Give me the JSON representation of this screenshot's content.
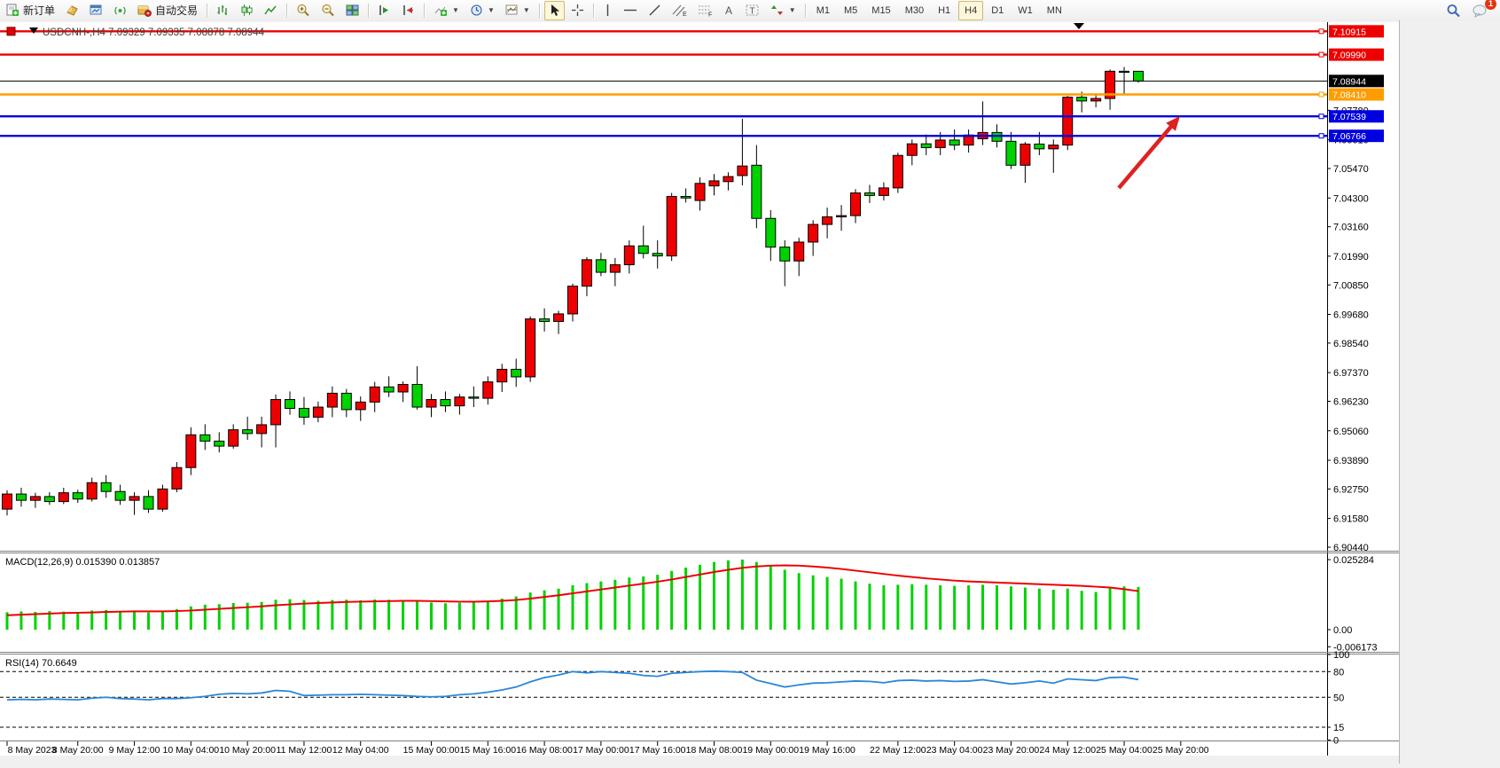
{
  "toolbar": {
    "new_order": "新订单",
    "autotrade": "自动交易",
    "tooltips": {
      "bar_chart": "bar-chart",
      "candle_chart": "candlestick-chart",
      "line_chart": "line-chart",
      "zoom_in": "zoom-in",
      "zoom_out": "zoom-out",
      "tile_windows": "tile-windows",
      "auto_scroll": "auto-scroll",
      "chart_shift": "chart-shift",
      "indicators": "indicators",
      "periods": "periods",
      "templates": "templates",
      "cursor": "cursor",
      "crosshair": "crosshair",
      "vline": "vertical-line",
      "hline": "horizontal-line",
      "trendline": "trendline",
      "channel": "equidistant-channel",
      "fibo": "fibonacci",
      "text": "text",
      "label": "text-label",
      "arrows": "arrows"
    },
    "chat_badge": "1"
  },
  "timeframes": {
    "items": [
      "M1",
      "M5",
      "M15",
      "M30",
      "H1",
      "H4",
      "D1",
      "W1",
      "MN"
    ],
    "active": "H4"
  },
  "chart": {
    "title": "USDCNH-,H4  7.09329 7.09335 7.08878 7.08944",
    "symbol": "USDCNH-",
    "period": "H4",
    "open": "7.09329",
    "high": "7.09335",
    "low": "7.08878",
    "close": "7.08944",
    "current_price": "7.08944",
    "hlines": [
      {
        "price": 7.10915,
        "label": "7.10915",
        "color": "#ee0000"
      },
      {
        "price": 7.0999,
        "label": "7.09990",
        "color": "#ee0000"
      },
      {
        "price": 7.0841,
        "label": "7.08410",
        "color": "#ff9c00"
      },
      {
        "price": 7.07539,
        "label": "7.07539",
        "color": "#0000e0"
      },
      {
        "price": 7.06766,
        "label": "7.06766",
        "color": "#0000e0"
      }
    ],
    "price_ticks": [
      "7.07780",
      "7.06610",
      "7.05470",
      "7.04300",
      "7.03160",
      "7.01990",
      "7.00850",
      "6.99680",
      "6.98540",
      "6.97370",
      "6.96230",
      "6.95060",
      "6.93890",
      "6.92750",
      "6.91580",
      "6.90440"
    ]
  },
  "chart_data": {
    "type": "candlestick",
    "symbol": "USDCNH-",
    "timeframe": "H4",
    "ylim": [
      6.9044,
      7.1128
    ],
    "colors": {
      "bull": "#ee0000",
      "bear": "#00d200",
      "wick": "#000000",
      "macd_hist": "#00d200",
      "macd_signal": "#ee0000",
      "rsi_line": "#2a86d8",
      "hline_red": "#ee0000",
      "hline_orange": "#ff9c00",
      "hline_blue": "#0000e0",
      "arrow": "#dd2222"
    },
    "date_labels": [
      {
        "label": "8 May 2023",
        "i": 0
      },
      {
        "label": "8 May 20:00",
        "i": 5
      },
      {
        "label": "9 May 12:00",
        "i": 9
      },
      {
        "label": "10 May 04:00",
        "i": 13
      },
      {
        "label": "10 May 20:00",
        "i": 17
      },
      {
        "label": "11 May 12:00",
        "i": 21
      },
      {
        "label": "12 May 04:00",
        "i": 25
      },
      {
        "label": "15 May 00:00",
        "i": 30
      },
      {
        "label": "15 May 16:00",
        "i": 34
      },
      {
        "label": "16 May 08:00",
        "i": 38
      },
      {
        "label": "17 May 00:00",
        "i": 42
      },
      {
        "label": "17 May 16:00",
        "i": 46
      },
      {
        "label": "18 May 08:00",
        "i": 50
      },
      {
        "label": "19 May 00:00",
        "i": 54
      },
      {
        "label": "19 May 16:00",
        "i": 58
      },
      {
        "label": "22 May 12:00",
        "i": 63
      },
      {
        "label": "23 May 04:00",
        "i": 67
      },
      {
        "label": "23 May 20:00",
        "i": 71
      },
      {
        "label": "24 May 12:00",
        "i": 75
      },
      {
        "label": "25 May 04:00",
        "i": 79
      },
      {
        "label": "25 May 20:00",
        "i": 83
      }
    ],
    "ohlc": [
      [
        6.9195,
        6.927,
        6.917,
        6.9255
      ],
      [
        6.9255,
        6.928,
        6.9205,
        6.923
      ],
      [
        6.923,
        6.926,
        6.92,
        6.9245
      ],
      [
        6.9245,
        6.9262,
        6.9212,
        6.9225
      ],
      [
        6.9225,
        6.928,
        6.9215,
        6.926
      ],
      [
        6.926,
        6.9272,
        6.922,
        6.9235
      ],
      [
        6.9235,
        6.932,
        6.9225,
        6.93
      ],
      [
        6.93,
        6.933,
        6.924,
        6.9265
      ],
      [
        6.9265,
        6.9292,
        6.9212,
        6.923
      ],
      [
        6.923,
        6.9262,
        6.9172,
        6.9245
      ],
      [
        6.9245,
        6.927,
        6.918,
        6.9195
      ],
      [
        6.9195,
        6.9292,
        6.9185,
        6.9275
      ],
      [
        6.9275,
        6.9382,
        6.9262,
        6.936
      ],
      [
        6.936,
        6.952,
        6.933,
        6.949
      ],
      [
        6.949,
        6.9532,
        6.943,
        6.9465
      ],
      [
        6.9465,
        6.95,
        6.942,
        6.9445
      ],
      [
        6.9445,
        6.9532,
        6.9435,
        6.951
      ],
      [
        6.951,
        6.9562,
        6.947,
        6.9495
      ],
      [
        6.9495,
        6.9562,
        6.944,
        6.953
      ],
      [
        6.953,
        6.965,
        6.944,
        6.963
      ],
      [
        6.963,
        6.9662,
        6.957,
        6.9595
      ],
      [
        6.9595,
        6.964,
        6.953,
        6.956
      ],
      [
        6.956,
        6.9622,
        6.954,
        6.96
      ],
      [
        6.96,
        6.9682,
        6.956,
        6.9655
      ],
      [
        6.9655,
        6.9672,
        6.956,
        6.959
      ],
      [
        6.959,
        6.9642,
        6.9545,
        6.962
      ],
      [
        6.962,
        6.97,
        6.958,
        6.968
      ],
      [
        6.968,
        6.9722,
        6.964,
        6.966
      ],
      [
        6.966,
        6.9702,
        6.962,
        6.969
      ],
      [
        6.969,
        6.9762,
        6.959,
        6.96
      ],
      [
        6.96,
        6.9652,
        6.956,
        6.963
      ],
      [
        6.963,
        6.9662,
        6.958,
        6.9605
      ],
      [
        6.9605,
        6.9652,
        6.957,
        6.964
      ],
      [
        6.964,
        6.9682,
        6.96,
        6.9635
      ],
      [
        6.9635,
        6.9722,
        6.961,
        6.97
      ],
      [
        6.97,
        6.9772,
        6.966,
        6.975
      ],
      [
        6.975,
        6.9792,
        6.968,
        6.972
      ],
      [
        6.972,
        6.996,
        6.97,
        6.995
      ],
      [
        6.995,
        6.9992,
        6.99,
        6.994
      ],
      [
        6.994,
        6.9982,
        6.989,
        6.997
      ],
      [
        6.997,
        7.009,
        6.994,
        7.008
      ],
      [
        7.008,
        7.0195,
        7.004,
        7.0185
      ],
      [
        7.0185,
        7.0212,
        7.012,
        7.0135
      ],
      [
        7.0135,
        7.0192,
        7.008,
        7.0165
      ],
      [
        7.0165,
        7.0262,
        7.013,
        7.024
      ],
      [
        7.024,
        7.032,
        7.019,
        7.021
      ],
      [
        7.021,
        7.0262,
        7.015,
        7.02
      ],
      [
        7.02,
        7.045,
        7.018,
        7.0436
      ],
      [
        7.0436,
        7.0468,
        7.0412,
        7.043
      ],
      [
        7.042,
        7.0512,
        7.038,
        7.0488
      ],
      [
        7.0478,
        7.0525,
        7.044,
        7.0498
      ],
      [
        7.0495,
        7.0532,
        7.046,
        7.0515
      ],
      [
        7.0519,
        7.0744,
        7.048,
        7.0557
      ],
      [
        7.056,
        7.064,
        7.031,
        7.0349
      ],
      [
        7.0349,
        7.0382,
        7.018,
        7.0235
      ],
      [
        7.0235,
        7.0262,
        7.008,
        7.018
      ],
      [
        7.018,
        7.0272,
        7.012,
        7.0255
      ],
      [
        7.0255,
        7.0342,
        7.02,
        7.0325
      ],
      [
        7.0325,
        7.0392,
        7.027,
        7.0355
      ],
      [
        7.0355,
        7.0402,
        7.03,
        7.036
      ],
      [
        7.036,
        7.0465,
        7.033,
        7.045
      ],
      [
        7.045,
        7.0482,
        7.041,
        7.044
      ],
      [
        7.044,
        7.0492,
        7.042,
        7.047
      ],
      [
        7.047,
        7.061,
        7.045,
        7.0599
      ],
      [
        7.0599,
        7.0662,
        7.056,
        7.0645
      ],
      [
        7.0645,
        7.0682,
        7.06,
        7.063
      ],
      [
        7.063,
        7.0692,
        7.06,
        7.066
      ],
      [
        7.066,
        7.0702,
        7.062,
        7.064
      ],
      [
        7.064,
        7.0702,
        7.061,
        7.068
      ],
      [
        7.0665,
        7.0813,
        7.064,
        7.069
      ],
      [
        7.069,
        7.0722,
        7.063,
        7.0655
      ],
      [
        7.0655,
        7.0692,
        7.0545,
        7.056
      ],
      [
        7.056,
        7.0652,
        7.049,
        7.0644
      ],
      [
        7.0644,
        7.0692,
        7.06,
        7.0625
      ],
      [
        7.0625,
        7.0662,
        7.053,
        7.064
      ],
      [
        7.064,
        7.0835,
        7.062,
        7.083
      ],
      [
        7.083,
        7.0852,
        7.077,
        7.0815
      ],
      [
        7.0815,
        7.0845,
        7.079,
        7.0825
      ],
      [
        7.0825,
        7.094,
        7.078,
        7.0933
      ],
      [
        7.0933,
        7.095,
        7.084,
        7.093
      ],
      [
        7.09329,
        7.09335,
        7.08878,
        7.08944
      ]
    ],
    "macd": {
      "label": "MACD(12,26,9)",
      "value_main": "0.015390",
      "value_signal": "0.013857",
      "axis_labels": [
        "0.025284",
        "0.00",
        "-0.006173"
      ],
      "axis_values": [
        0.025284,
        0.0,
        -0.006173
      ],
      "histogram": [
        0.0063,
        0.0066,
        0.0064,
        0.0067,
        0.0065,
        0.0064,
        0.0069,
        0.0071,
        0.0068,
        0.0065,
        0.0062,
        0.0066,
        0.0074,
        0.0084,
        0.009,
        0.0092,
        0.0096,
        0.0097,
        0.01,
        0.0108,
        0.011,
        0.0107,
        0.0104,
        0.0107,
        0.0108,
        0.0106,
        0.0109,
        0.0108,
        0.0105,
        0.0101,
        0.0098,
        0.0095,
        0.0097,
        0.0099,
        0.0104,
        0.0112,
        0.012,
        0.0134,
        0.0142,
        0.0148,
        0.016,
        0.0168,
        0.0174,
        0.018,
        0.0188,
        0.0192,
        0.0198,
        0.0212,
        0.0224,
        0.0234,
        0.0244,
        0.025,
        0.0253,
        0.0244,
        0.023,
        0.0216,
        0.0204,
        0.0196,
        0.019,
        0.0184,
        0.0174,
        0.0166,
        0.016,
        0.0162,
        0.0164,
        0.0162,
        0.016,
        0.0158,
        0.016,
        0.0162,
        0.016,
        0.0156,
        0.0152,
        0.0148,
        0.0144,
        0.0148,
        0.014,
        0.0136,
        0.015,
        0.0156,
        0.0154
      ],
      "signal": [
        0.0052,
        0.0054,
        0.0056,
        0.0058,
        0.006,
        0.0061,
        0.0062,
        0.0064,
        0.0065,
        0.0066,
        0.0066,
        0.0066,
        0.0067,
        0.0069,
        0.0072,
        0.0075,
        0.0078,
        0.0081,
        0.0084,
        0.0088,
        0.0091,
        0.0094,
        0.0096,
        0.0098,
        0.01,
        0.0101,
        0.0102,
        0.0103,
        0.0104,
        0.0104,
        0.0103,
        0.0102,
        0.0101,
        0.0101,
        0.0102,
        0.0104,
        0.0107,
        0.0112,
        0.0118,
        0.0124,
        0.0131,
        0.0138,
        0.0145,
        0.0152,
        0.0159,
        0.0166,
        0.0173,
        0.0181,
        0.019,
        0.0199,
        0.0208,
        0.0216,
        0.0223,
        0.0228,
        0.0231,
        0.0232,
        0.0231,
        0.0228,
        0.0224,
        0.0219,
        0.0213,
        0.0207,
        0.0201,
        0.0195,
        0.019,
        0.0185,
        0.0181,
        0.0177,
        0.0174,
        0.0172,
        0.017,
        0.0168,
        0.0166,
        0.0164,
        0.0162,
        0.016,
        0.0158,
        0.0155,
        0.0152,
        0.0146,
        0.0139
      ]
    },
    "rsi": {
      "label": "RSI(14)",
      "value": "70.6649",
      "axis_labels": [
        "100",
        "80",
        "50",
        "15",
        "0"
      ],
      "levels": [
        80,
        50,
        15
      ],
      "series": [
        47,
        47.5,
        47,
        48,
        47.5,
        47,
        49,
        50,
        48.5,
        48,
        47,
        48.5,
        48.5,
        49.5,
        51,
        53.5,
        54.5,
        54,
        55,
        58,
        57,
        52,
        52.5,
        53,
        53,
        53.5,
        53,
        52.5,
        52,
        51,
        50.5,
        51,
        53,
        54,
        56,
        58.5,
        62,
        68,
        73,
        76,
        80,
        78.5,
        80,
        79,
        78,
        75.5,
        74.5,
        78,
        79,
        80,
        80.5,
        80,
        79,
        70,
        66,
        62,
        64.5,
        66.5,
        67,
        68,
        69,
        68.5,
        67,
        69.5,
        70,
        69,
        69.5,
        68.5,
        69,
        70.5,
        68,
        65.5,
        67,
        69,
        66.5,
        71.5,
        70.5,
        69.5,
        73,
        73.5,
        70.66
      ]
    },
    "annotations": [
      {
        "type": "arrow",
        "from": {
          "x": 1262,
          "y": 212
        },
        "to": {
          "x": 1331,
          "y": 131
        },
        "color": "#dd2222"
      }
    ]
  }
}
